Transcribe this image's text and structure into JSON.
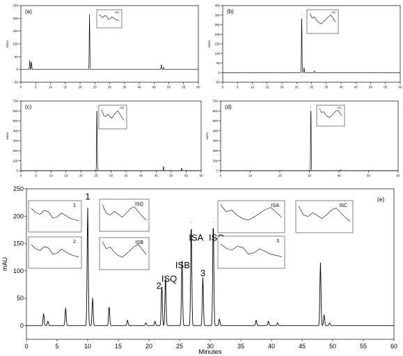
{
  "chart_data": [
    {
      "type": "line",
      "panel_label": "(a)",
      "ylabel": "mAU",
      "xlim": [
        0,
        60
      ],
      "x_ticks": [
        0,
        5,
        10,
        15,
        20,
        25,
        30,
        35,
        40,
        45,
        50,
        55,
        60
      ],
      "ylim": [
        -50,
        250
      ],
      "y_ticks": [
        -50,
        0,
        50,
        100,
        150,
        200,
        250
      ],
      "grid": false,
      "peaks": [
        [
          3.0,
          35
        ],
        [
          3.6,
          30
        ],
        [
          23.2,
          215
        ],
        [
          47.5,
          18
        ],
        [
          48.3,
          8
        ]
      ],
      "inset_label": "ISQ"
    },
    {
      "type": "line",
      "panel_label": "(b)",
      "ylabel": "mAU",
      "xlim": [
        0,
        60
      ],
      "x_ticks": [
        0,
        5,
        10,
        15,
        20,
        25,
        30,
        35,
        40,
        45,
        50,
        55,
        60
      ],
      "ylim": [
        -50,
        350
      ],
      "y_ticks": [
        -50,
        0,
        50,
        100,
        150,
        200,
        250,
        300,
        350
      ],
      "grid": false,
      "peaks": [
        [
          26.7,
          300
        ],
        [
          27.5,
          25
        ],
        [
          31.0,
          8
        ]
      ],
      "inset_label": "ISA"
    },
    {
      "type": "line",
      "panel_label": "(c)",
      "ylabel": "mAU",
      "xlim": [
        0,
        60
      ],
      "x_ticks": [
        0,
        5,
        10,
        15,
        20,
        25,
        30,
        35,
        40,
        45,
        50,
        55,
        60
      ],
      "ylim": [
        0,
        700
      ],
      "y_ticks": [
        0,
        100,
        200,
        300,
        400,
        500,
        600,
        700
      ],
      "grid": false,
      "peaks": [
        [
          25.3,
          640
        ],
        [
          47.5,
          40
        ],
        [
          53.5,
          25
        ]
      ],
      "inset_label": "ISB"
    },
    {
      "type": "line",
      "panel_label": "(d)",
      "ylabel": "mAU",
      "xlim": [
        0,
        60
      ],
      "x_ticks": [
        0,
        10,
        20,
        30,
        40,
        50,
        60
      ],
      "ylim": [
        0,
        700
      ],
      "y_ticks": [
        0,
        100,
        200,
        300,
        400,
        500,
        600,
        700
      ],
      "grid": false,
      "peaks": [
        [
          30.5,
          640
        ],
        [
          40.5,
          8
        ]
      ],
      "inset_label": "ISC"
    },
    {
      "type": "line",
      "panel_label": "(e)",
      "xlabel": "Minutes",
      "ylabel": "mAU",
      "xlim": [
        0,
        60
      ],
      "x_ticks": [
        0,
        5,
        10,
        15,
        20,
        25,
        30,
        35,
        40,
        45,
        50,
        55,
        60
      ],
      "ylim": [
        -25,
        250
      ],
      "y_ticks": [
        0,
        50,
        100,
        150,
        200,
        250
      ],
      "grid": false,
      "peaks": [
        [
          2.8,
          22
        ],
        [
          3.5,
          8
        ],
        [
          6.4,
          32
        ],
        [
          10.0,
          215
        ],
        [
          10.8,
          50
        ],
        [
          13.5,
          35
        ],
        [
          16.5,
          10
        ],
        [
          19.5,
          5
        ],
        [
          21.0,
          8
        ],
        [
          22.1,
          75
        ],
        [
          22.7,
          90
        ],
        [
          25.4,
          118
        ],
        [
          26.9,
          188
        ],
        [
          28.8,
          88
        ],
        [
          30.5,
          190
        ],
        [
          31.5,
          12
        ],
        [
          37.5,
          10
        ],
        [
          39.5,
          8
        ],
        [
          41.0,
          5
        ],
        [
          48.0,
          115
        ],
        [
          48.6,
          20
        ],
        [
          49.5,
          5
        ]
      ],
      "annotations": [
        {
          "text": "1",
          "x": 10.0,
          "y": 230
        },
        {
          "text": "2",
          "x": 21.6,
          "y": 67
        },
        {
          "text": "ISQ",
          "x": 23.3,
          "y": 80
        },
        {
          "text": "ISB",
          "x": 25.5,
          "y": 105
        },
        {
          "text": "ISA",
          "x": 27.7,
          "y": 155
        },
        {
          "text": "3",
          "x": 28.8,
          "y": 90
        },
        {
          "text": "ISC",
          "x": 31.0,
          "y": 155
        }
      ],
      "insets": [
        "1",
        "ISQ",
        "2",
        "ISB",
        "ISA",
        "ISC",
        "3"
      ]
    }
  ]
}
